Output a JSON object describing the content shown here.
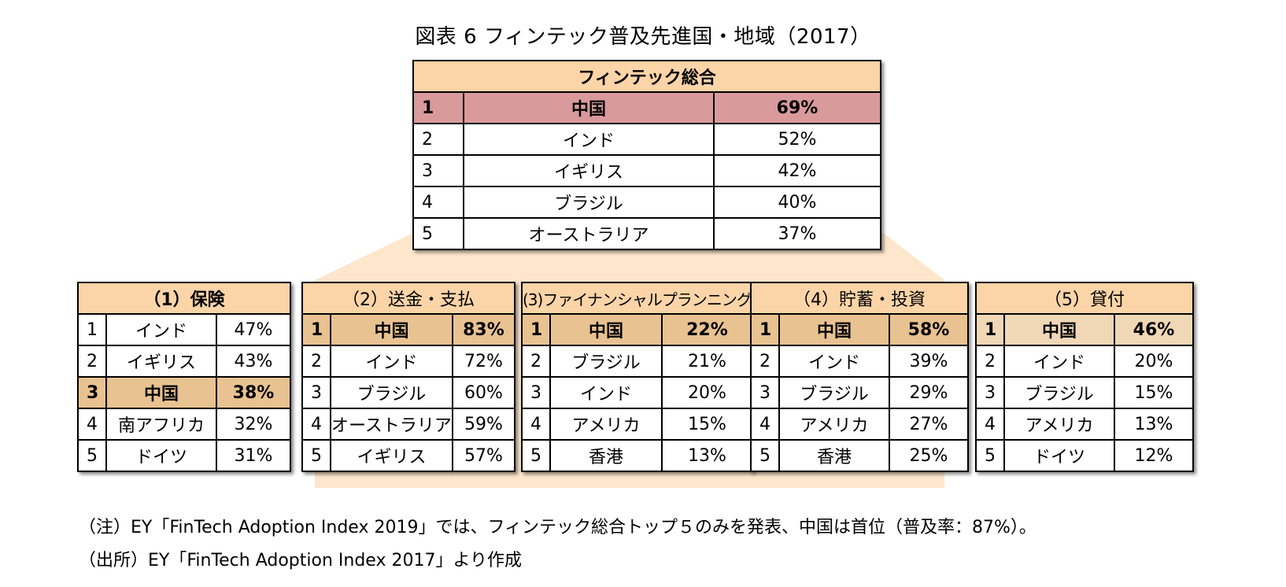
{
  "title": "図表 6 フィンテック普及先進国・地域（2017）",
  "main_table": {
    "header": "フィンテック総合",
    "rows": [
      {
        "rank": "1",
        "country": "中国",
        "value": "69%"
      },
      {
        "rank": "2",
        "country": "インド",
        "value": "52%"
      },
      {
        "rank": "3",
        "country": "イギリス",
        "value": "42%"
      },
      {
        "rank": "4",
        "country": "ブラジル",
        "value": "40%"
      },
      {
        "rank": "5",
        "country": "オーストラリア",
        "value": "37%"
      }
    ]
  },
  "sub_tables": [
    {
      "header": "（1）保険",
      "rows": [
        {
          "rank": "1",
          "country": "インド",
          "value": "47%"
        },
        {
          "rank": "2",
          "country": "イギリス",
          "value": "43%"
        },
        {
          "rank": "3",
          "country": "中国",
          "value": "38%"
        },
        {
          "rank": "4",
          "country": "南アフリカ",
          "value": "32%"
        },
        {
          "rank": "5",
          "country": "ドイツ",
          "value": "31%"
        }
      ]
    },
    {
      "header": "（2）送金・支払",
      "rows": [
        {
          "rank": "1",
          "country": "中国",
          "value": "83%"
        },
        {
          "rank": "2",
          "country": "インド",
          "value": "72%"
        },
        {
          "rank": "3",
          "country": "ブラジル",
          "value": "60%"
        },
        {
          "rank": "4",
          "country": "オーストラリア",
          "value": "59%"
        },
        {
          "rank": "5",
          "country": "イギリス",
          "value": "57%"
        }
      ]
    },
    {
      "header": "(3)ファイナンシャルプランニング",
      "rows": [
        {
          "rank": "1",
          "country": "中国",
          "value": "22%"
        },
        {
          "rank": "2",
          "country": "ブラジル",
          "value": "21%"
        },
        {
          "rank": "3",
          "country": "インド",
          "value": "20%"
        },
        {
          "rank": "4",
          "country": "アメリカ",
          "value": "15%"
        },
        {
          "rank": "5",
          "country": "香港",
          "value": "13%"
        }
      ]
    },
    {
      "header": "（4）貯蓄・投資",
      "rows": [
        {
          "rank": "1",
          "country": "中国",
          "value": "58%"
        },
        {
          "rank": "2",
          "country": "インド",
          "value": "39%"
        },
        {
          "rank": "3",
          "country": "ブラジル",
          "value": "29%"
        },
        {
          "rank": "4",
          "country": "アメリカ",
          "value": "27%"
        },
        {
          "rank": "5",
          "country": "香港",
          "value": "25%"
        }
      ]
    },
    {
      "header": "（5）貸付",
      "rows": [
        {
          "rank": "1",
          "country": "中国",
          "value": "46%"
        },
        {
          "rank": "2",
          "country": "インド",
          "value": "20%"
        },
        {
          "rank": "3",
          "country": "ブラジル",
          "value": "15%"
        },
        {
          "rank": "4",
          "country": "アメリカ",
          "value": "13%"
        },
        {
          "rank": "5",
          "country": "ドイツ",
          "value": "12%"
        }
      ]
    }
  ],
  "notes": {
    "note1": "（注）EY「FinTech Adoption Index 2019」では、フィンテック総合トップ５のみを発表、中国は首位（普及率：87%）。",
    "source": "（出所）EY「FinTech Adoption Index 2017」より作成"
  },
  "colors": {
    "header_fill": "#fbd4a7",
    "highlight_main": "#d99a9c",
    "highlight_sub": "#e9c291",
    "connector_fill": "#fde6cc"
  },
  "chart_data": {
    "type": "table",
    "title": "図表 6 フィンテック普及先進国・地域（2017）",
    "tables": [
      {
        "name": "フィンテック総合",
        "categories": [
          "中国",
          "インド",
          "イギリス",
          "ブラジル",
          "オーストラリア"
        ],
        "values": [
          69,
          52,
          42,
          40,
          37
        ]
      },
      {
        "name": "（1）保険",
        "categories": [
          "インド",
          "イギリス",
          "中国",
          "南アフリカ",
          "ドイツ"
        ],
        "values": [
          47,
          43,
          38,
          32,
          31
        ]
      },
      {
        "name": "（2）送金・支払",
        "categories": [
          "中国",
          "インド",
          "ブラジル",
          "オーストラリア",
          "イギリス"
        ],
        "values": [
          83,
          72,
          60,
          59,
          57
        ]
      },
      {
        "name": "(3)ファイナンシャルプランニング",
        "categories": [
          "中国",
          "ブラジル",
          "インド",
          "アメリカ",
          "香港"
        ],
        "values": [
          22,
          21,
          20,
          15,
          13
        ]
      },
      {
        "name": "（4）貯蓄・投資",
        "categories": [
          "中国",
          "インド",
          "ブラジル",
          "アメリカ",
          "香港"
        ],
        "values": [
          58,
          39,
          29,
          27,
          25
        ]
      },
      {
        "name": "（5）貸付",
        "categories": [
          "中国",
          "インド",
          "ブラジル",
          "アメリカ",
          "ドイツ"
        ],
        "values": [
          46,
          20,
          15,
          13,
          12
        ]
      }
    ]
  }
}
